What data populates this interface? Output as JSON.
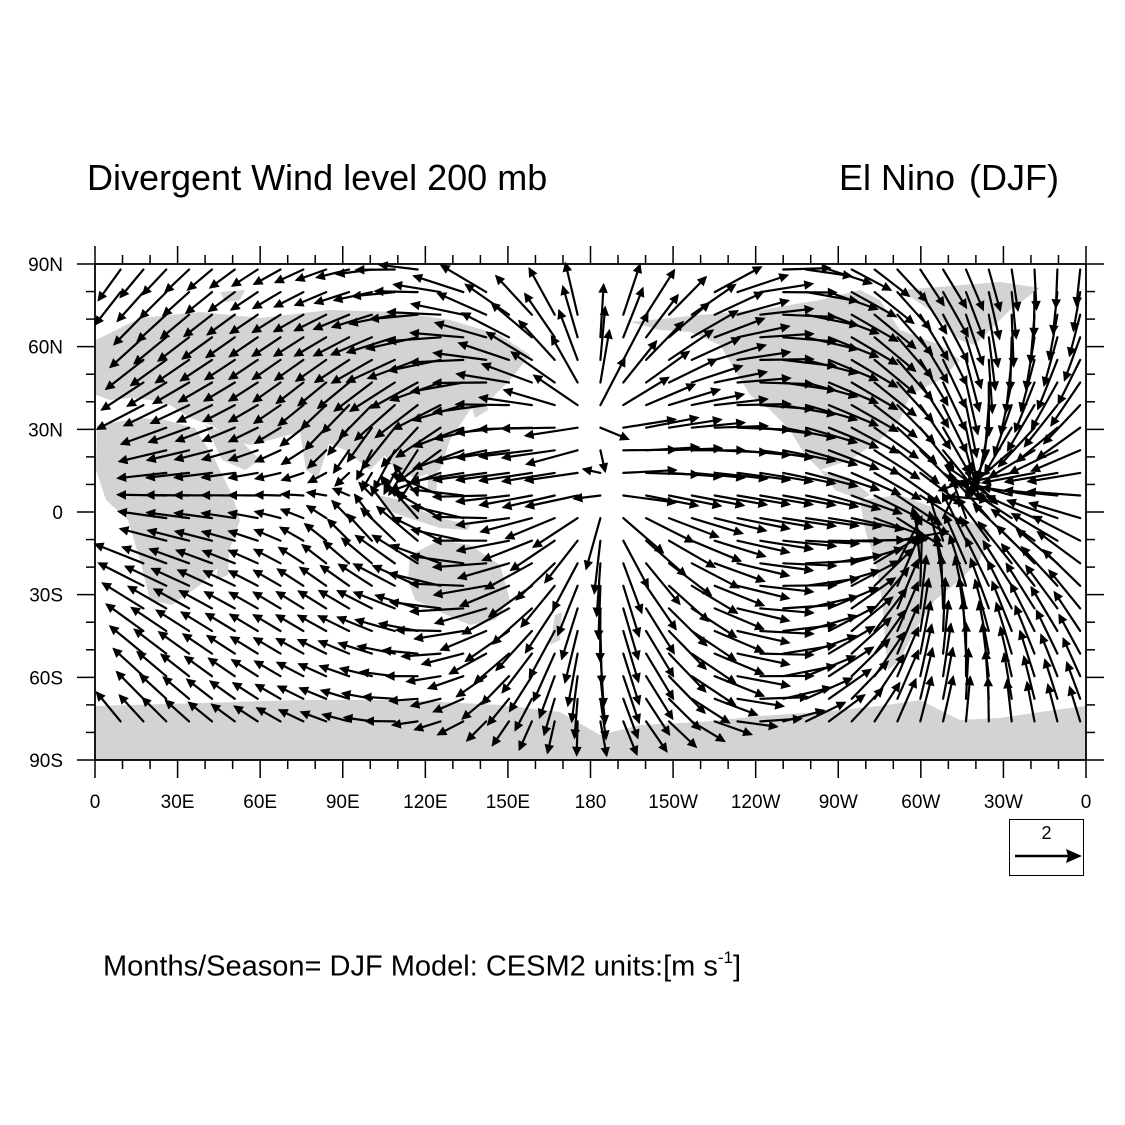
{
  "header": {
    "title_left": "Divergent Wind level 200 mb",
    "title_right_a": "El Nino",
    "title_right_b": "(DJF)"
  },
  "map": {
    "projection": "cylindrical-equidistant",
    "lon_range": [
      0,
      360
    ],
    "lat_range": [
      -90,
      90
    ],
    "lat_labels": [
      "90N",
      "60N",
      "30N",
      "0",
      "30S",
      "60S",
      "90S"
    ],
    "lon_labels": [
      "0",
      "30E",
      "60E",
      "90E",
      "120E",
      "150E",
      "180",
      "150W",
      "120W",
      "90W",
      "60W",
      "30W",
      "0"
    ],
    "land_color": "#d3d3d3",
    "vector_color": "#000000",
    "field": "divergent wind vectors",
    "convergence_centers": [
      {
        "lon": 125,
        "lat": 12
      },
      {
        "lon": 290,
        "lat": -12
      },
      {
        "lon": 320,
        "lat": 15
      }
    ],
    "divergence_centers": [
      {
        "lon": 185,
        "lat": 0
      },
      {
        "lon": 180,
        "lat": 37
      }
    ]
  },
  "reference_vector": {
    "label": "2",
    "magnitude": 2
  },
  "footer": {
    "text": "Months/Season= DJF Model: CESM2  units:[m s",
    "superscript": "-1",
    "suffix": "]"
  }
}
